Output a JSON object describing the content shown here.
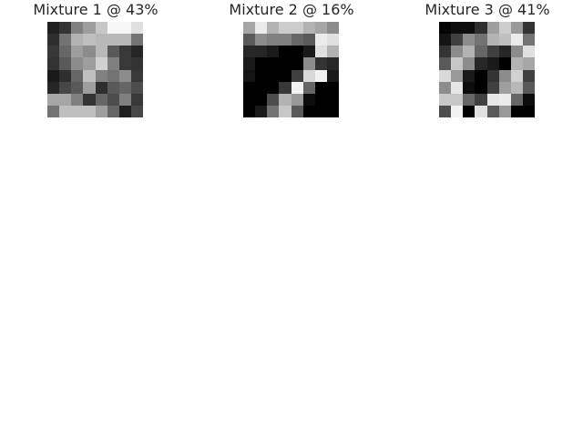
{
  "panels": [
    {
      "title": "Mixture 1 @ 43%",
      "grid": [
        [
          0.12,
          0.2,
          0.5,
          0.62,
          0.78,
          0.97,
          0.97,
          0.88
        ],
        [
          0.18,
          0.45,
          0.7,
          0.75,
          0.72,
          0.72,
          0.72,
          0.45
        ],
        [
          0.22,
          0.4,
          0.62,
          0.55,
          0.72,
          0.35,
          0.22,
          0.15
        ],
        [
          0.2,
          0.35,
          0.55,
          0.62,
          0.82,
          0.5,
          0.22,
          0.2
        ],
        [
          0.1,
          0.18,
          0.4,
          0.75,
          0.5,
          0.45,
          0.55,
          0.22
        ],
        [
          0.15,
          0.28,
          0.35,
          0.62,
          0.18,
          0.35,
          0.4,
          0.3
        ],
        [
          0.65,
          0.65,
          0.5,
          0.2,
          0.4,
          0.3,
          0.5,
          0.22
        ],
        [
          0.45,
          0.75,
          0.75,
          0.75,
          0.62,
          0.4,
          0.12,
          0.28
        ]
      ]
    },
    {
      "title": "Mixture 2 @ 16%",
      "grid": [
        [
          0.65,
          0.92,
          0.7,
          0.8,
          0.8,
          0.7,
          0.65,
          0.55
        ],
        [
          0.35,
          0.55,
          0.5,
          0.5,
          0.4,
          0.35,
          0.92,
          0.88
        ],
        [
          0.15,
          0.15,
          0.1,
          0.0,
          0.0,
          0.1,
          0.88,
          0.7
        ],
        [
          0.1,
          0.0,
          0.0,
          0.0,
          0.0,
          0.55,
          0.2,
          0.15
        ],
        [
          0.08,
          0.0,
          0.0,
          0.0,
          0.25,
          0.85,
          0.95,
          0.1
        ],
        [
          0.0,
          0.0,
          0.0,
          0.22,
          0.95,
          0.4,
          0.0,
          0.0
        ],
        [
          0.0,
          0.0,
          0.3,
          0.7,
          0.6,
          0.05,
          0.0,
          0.0
        ],
        [
          0.0,
          0.1,
          0.45,
          0.78,
          0.35,
          0.0,
          0.0,
          0.0
        ]
      ]
    },
    {
      "title": "Mixture 3 @ 41%",
      "grid": [
        [
          0.02,
          0.05,
          0.05,
          0.18,
          0.62,
          0.8,
          0.6,
          0.2
        ],
        [
          0.08,
          0.25,
          0.55,
          0.45,
          0.7,
          0.75,
          0.92,
          0.45
        ],
        [
          0.2,
          0.55,
          0.7,
          0.4,
          0.25,
          0.15,
          0.55,
          0.88
        ],
        [
          0.35,
          0.78,
          0.55,
          0.15,
          0.1,
          0.0,
          0.7,
          0.65
        ],
        [
          0.85,
          0.6,
          0.1,
          0.0,
          0.2,
          0.55,
          0.82,
          0.25
        ],
        [
          0.55,
          0.9,
          0.05,
          0.0,
          0.25,
          0.62,
          0.72,
          0.35
        ],
        [
          0.78,
          0.78,
          0.4,
          0.25,
          0.9,
          0.92,
          0.4,
          0.05
        ],
        [
          0.3,
          0.95,
          0.0,
          0.88,
          0.35,
          0.6,
          0.0,
          0.0
        ]
      ]
    }
  ]
}
